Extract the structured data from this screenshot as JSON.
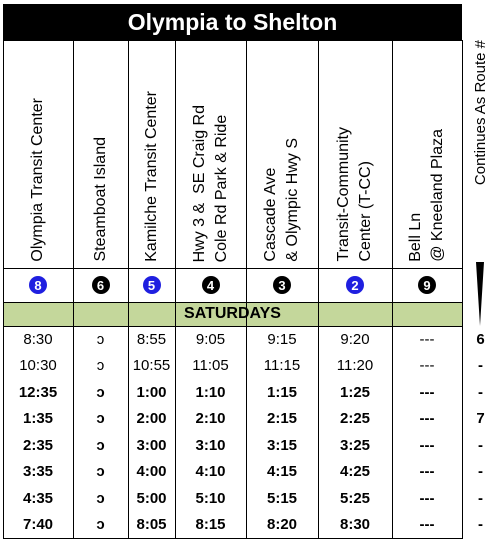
{
  "title": "Olympia to Shelton",
  "stops": [
    {
      "lines": [
        "Olympia Transit Center"
      ],
      "route": "8",
      "color": "#1f1fe0"
    },
    {
      "lines": [
        "Steamboat Island"
      ],
      "route": "6",
      "color": "#000000"
    },
    {
      "lines": [
        "Kamilche Transit Center"
      ],
      "route": "5",
      "color": "#1f1fe0"
    },
    {
      "lines": [
        "Hwy 3 &  SE Craig Rd",
        "Cole Rd Park & Ride"
      ],
      "route": "4",
      "color": "#000000"
    },
    {
      "lines": [
        "Cascade Ave",
        "& Olympic Hwy S"
      ],
      "route": "3",
      "color": "#000000"
    },
    {
      "lines": [
        "Transit-Community",
        "Center (T-CC)"
      ],
      "route": "2",
      "color": "#1f1fe0"
    },
    {
      "lines": [
        "Bell Ln",
        "@ Kneeland Plaza"
      ],
      "route": "9",
      "color": "#000000"
    }
  ],
  "continues_label": "Continues As Route #",
  "day": "SATURDAYS",
  "rows": [
    {
      "times": [
        "8:30",
        "ɔ",
        "8:55",
        "9:05",
        "9:15",
        "9:20",
        "---"
      ],
      "continues": "6"
    },
    {
      "times": [
        "10:30",
        "ɔ",
        "10:55",
        "11:05",
        "11:15",
        "11:20",
        "---"
      ],
      "continues": "-"
    },
    {
      "times": [
        "12:35",
        "ɔ",
        "1:00",
        "1:10",
        "1:15",
        "1:25",
        "---"
      ],
      "continues": "-"
    },
    {
      "times": [
        "1:35",
        "ɔ",
        "2:00",
        "2:10",
        "2:15",
        "2:25",
        "---"
      ],
      "continues": "7"
    },
    {
      "times": [
        "2:35",
        "ɔ",
        "3:00",
        "3:10",
        "3:15",
        "3:25",
        "---"
      ],
      "continues": "-"
    },
    {
      "times": [
        "3:35",
        "ɔ",
        "4:00",
        "4:10",
        "4:15",
        "4:25",
        "---"
      ],
      "continues": "-"
    },
    {
      "times": [
        "4:35",
        "ɔ",
        "5:00",
        "5:10",
        "5:15",
        "5:25",
        "---"
      ],
      "continues": "-"
    },
    {
      "times": [
        "7:40",
        "ɔ",
        "8:05",
        "8:15",
        "8:20",
        "8:30",
        "---"
      ],
      "continues": "-"
    }
  ]
}
